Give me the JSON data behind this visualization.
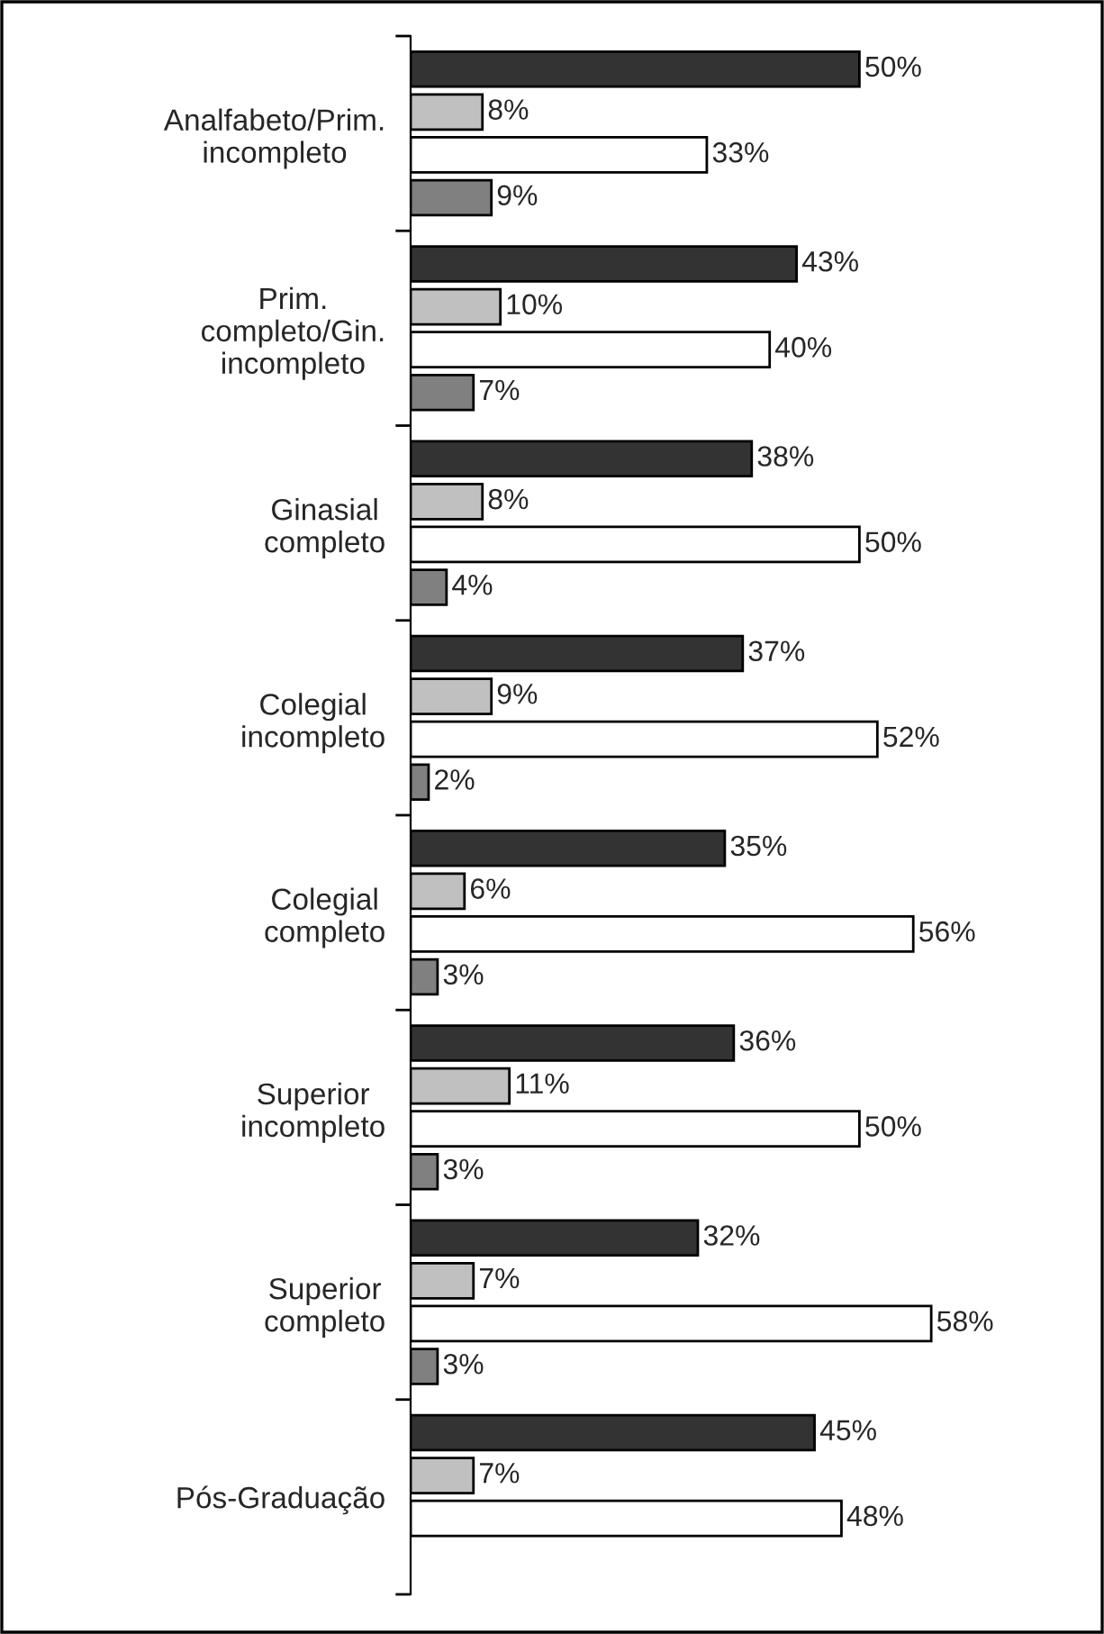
{
  "chart_data": {
    "type": "bar",
    "orientation": "horizontal",
    "grid": false,
    "legend": false,
    "categories": [
      "Analfabeto/Prim.\nincompleto",
      "Prim.\ncompleto/Gin.\nincompleto",
      "Ginasial\ncompleto",
      "Colegial\nincompleto",
      "Colegial\ncompleto",
      "Superior\nincompleto",
      "Superior\ncompleto",
      "Pós-Graduação"
    ],
    "series": [
      {
        "color": "#333333",
        "values": [
          50,
          43,
          38,
          37,
          35,
          36,
          32,
          45
        ],
        "value_labels": [
          "50%",
          "43%",
          "38%",
          "37%",
          "35%",
          "36%",
          "32%",
          "45%"
        ]
      },
      {
        "color": "#c0c0c0",
        "values": [
          8,
          10,
          8,
          9,
          6,
          11,
          7,
          7
        ],
        "value_labels": [
          "8%",
          "10%",
          "8%",
          "9%",
          "6%",
          "11%",
          "7%",
          "7%"
        ]
      },
      {
        "color": "#ffffff",
        "values": [
          33,
          40,
          50,
          52,
          56,
          50,
          58,
          48
        ],
        "value_labels": [
          "33%",
          "40%",
          "50%",
          "52%",
          "56%",
          "50%",
          "58%",
          "48%"
        ]
      },
      {
        "color": "#808080",
        "values": [
          9,
          7,
          4,
          2,
          3,
          3,
          3,
          null
        ],
        "value_labels": [
          "9%",
          "7%",
          "4%",
          "2%",
          "3%",
          "3%",
          "3%",
          null
        ]
      }
    ]
  }
}
